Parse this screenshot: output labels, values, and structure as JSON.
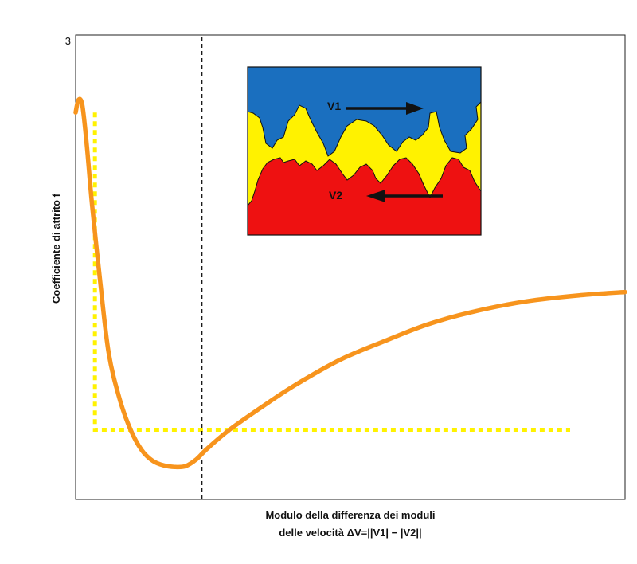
{
  "chart_data": {
    "type": "line",
    "title": "",
    "ylabel": "Coefficiente di attrito f",
    "xlabel_line1": "Modulo della differenza dei moduli",
    "xlabel_line2": "delle velocità ΔV=||V1| − |V2||",
    "y_tick_max_label": "3",
    "ylim": [
      0,
      3
    ],
    "xlim": [
      0,
      1
    ],
    "grid": false,
    "series": [
      {
        "color": "#f7941d",
        "style": "solid",
        "x": [
          0.0,
          0.005,
          0.012,
          0.02,
          0.03,
          0.045,
          0.06,
          0.08,
          0.1,
          0.12,
          0.14,
          0.16,
          0.18,
          0.2,
          0.22,
          0.24,
          0.28,
          0.34,
          0.4,
          0.48,
          0.56,
          0.64,
          0.72,
          0.82,
          0.92,
          1.0
        ],
        "y": [
          2.5,
          2.58,
          2.55,
          2.3,
          1.9,
          1.4,
          0.95,
          0.65,
          0.45,
          0.32,
          0.25,
          0.22,
          0.21,
          0.215,
          0.26,
          0.33,
          0.45,
          0.6,
          0.74,
          0.9,
          1.02,
          1.13,
          1.21,
          1.28,
          1.32,
          1.34
        ]
      }
    ],
    "reference_lines": [
      {
        "color": "#fff200",
        "style": "dotted",
        "x": [
          0.035,
          0.035,
          0.9
        ],
        "y": [
          2.5,
          0.45,
          0.45
        ]
      },
      {
        "color": "#000000",
        "style": "dashed",
        "x": [
          0.23,
          0.23
        ],
        "y": [
          0,
          3
        ]
      }
    ],
    "inset": {
      "colors": {
        "top": "#1a6fbf",
        "middle": "#fff200",
        "bottom": "#ee1111",
        "arrow": "#111111"
      },
      "labels": [
        "V1",
        "V2"
      ]
    }
  }
}
